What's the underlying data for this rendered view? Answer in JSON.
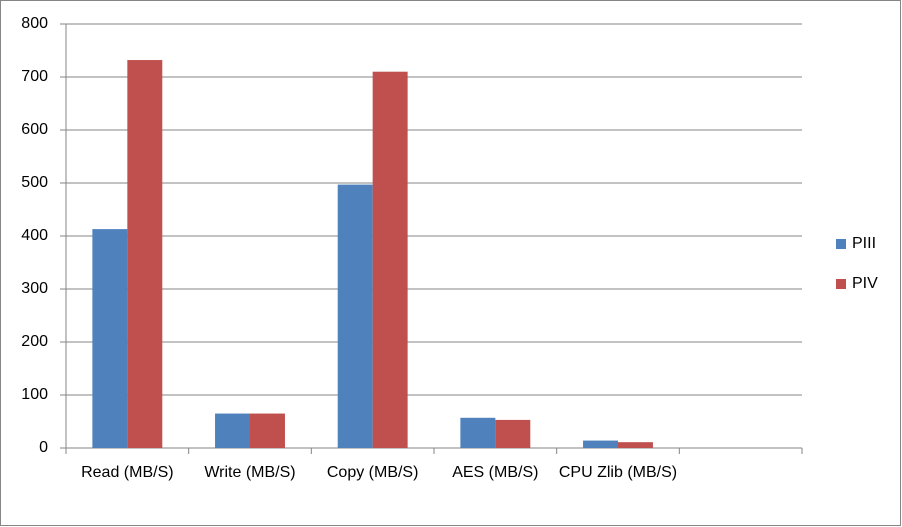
{
  "chart_data": {
    "type": "bar",
    "categories": [
      "Read (MB/S)",
      "Write (MB/S)",
      "Copy (MB/S)",
      "AES (MB/S)",
      "CPU Zlib (MB/S)",
      null
    ],
    "series": [
      {
        "name": "PIII",
        "color": "#4f81bd",
        "values": [
          413,
          65,
          497,
          57,
          14,
          null
        ]
      },
      {
        "name": "PIV",
        "color": "#c0504d",
        "values": [
          732,
          65,
          710,
          53,
          11,
          null
        ]
      }
    ],
    "ylim": [
      0,
      800
    ],
    "yticks": [
      0,
      100,
      200,
      300,
      400,
      500,
      600,
      700,
      800
    ],
    "grid": true,
    "legend": "right"
  }
}
